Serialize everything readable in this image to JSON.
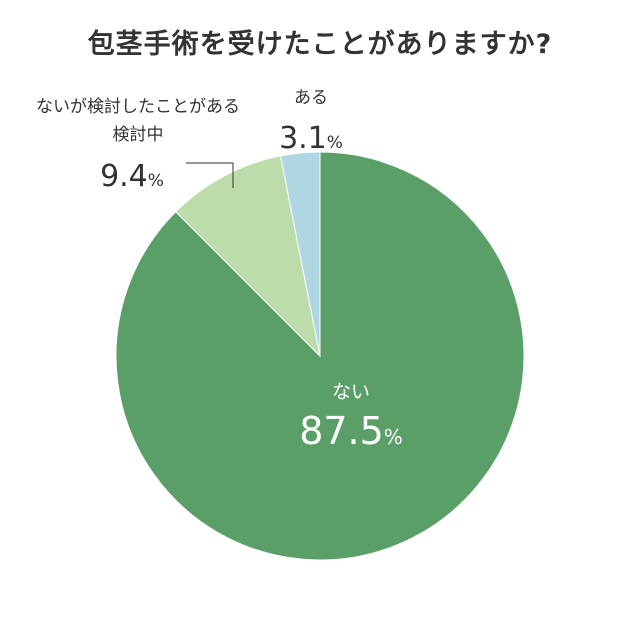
{
  "chart_data": {
    "type": "pie",
    "title": "包茎手術を受けたことがありますか?",
    "slices": [
      {
        "label": "ない",
        "value": 87.5,
        "value_text": "87.5",
        "unit": "%",
        "color": "#5a9f68"
      },
      {
        "label_line1": "ないが検討したことがある",
        "label_line2": "検討中",
        "value": 9.4,
        "value_text": "9.4",
        "unit": "%",
        "color": "#bcdcaa"
      },
      {
        "label": "ある",
        "value": 3.1,
        "value_text": "3.1",
        "unit": "%",
        "color": "#aed6e3"
      }
    ]
  }
}
